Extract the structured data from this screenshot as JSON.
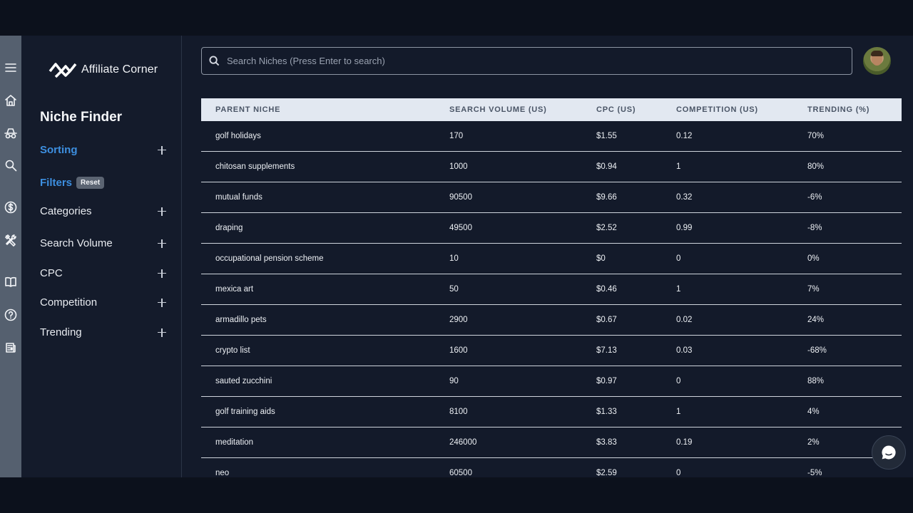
{
  "brand": {
    "name": "Affiliate Corner",
    "logo_icon": "affiliate-corner-logo"
  },
  "rail": [
    {
      "icon": "menu-icon"
    },
    {
      "icon": "home-icon"
    },
    {
      "icon": "incognito-icon"
    },
    {
      "icon": "search-icon"
    },
    {
      "icon": "dollar-icon"
    },
    {
      "icon": "tools-icon"
    },
    {
      "icon": "book-icon"
    },
    {
      "icon": "help-icon"
    },
    {
      "icon": "newspaper-icon"
    }
  ],
  "sidebar": {
    "title": "Niche Finder",
    "sorting_label": "Sorting",
    "filters_label": "Filters",
    "reset_label": "Reset",
    "filters": [
      {
        "label": "Categories"
      },
      {
        "label": "Search Volume"
      },
      {
        "label": "CPC"
      },
      {
        "label": "Competition"
      },
      {
        "label": "Trending"
      }
    ]
  },
  "search": {
    "placeholder": "Search Niches (Press Enter to search)",
    "value": ""
  },
  "table": {
    "headers": [
      "PARENT NICHE",
      "SEARCH VOLUME (US)",
      "CPC (US)",
      "COMPETITION (US)",
      "TRENDING (%)"
    ],
    "rows": [
      [
        "golf holidays",
        "170",
        "$1.55",
        "0.12",
        "70%"
      ],
      [
        "chitosan supplements",
        "1000",
        "$0.94",
        "1",
        "80%"
      ],
      [
        "mutual funds",
        "90500",
        "$9.66",
        "0.32",
        "-6%"
      ],
      [
        "draping",
        "49500",
        "$2.52",
        "0.99",
        "-8%"
      ],
      [
        "occupational pension scheme",
        "10",
        "$0",
        "0",
        "0%"
      ],
      [
        "mexica art",
        "50",
        "$0.46",
        "1",
        "7%"
      ],
      [
        "armadillo pets",
        "2900",
        "$0.67",
        "0.02",
        "24%"
      ],
      [
        "crypto list",
        "1600",
        "$7.13",
        "0.03",
        "-68%"
      ],
      [
        "sauted zucchini",
        "90",
        "$0.97",
        "0",
        "88%"
      ],
      [
        "golf training aids",
        "8100",
        "$1.33",
        "1",
        "4%"
      ],
      [
        "meditation",
        "246000",
        "$3.83",
        "0.19",
        "2%"
      ],
      [
        "neo",
        "60500",
        "$2.59",
        "0",
        "-5%"
      ]
    ]
  },
  "colors": {
    "accent": "#3d8fe0",
    "header_bg": "#e2e8f1",
    "background": "#131a2a"
  }
}
